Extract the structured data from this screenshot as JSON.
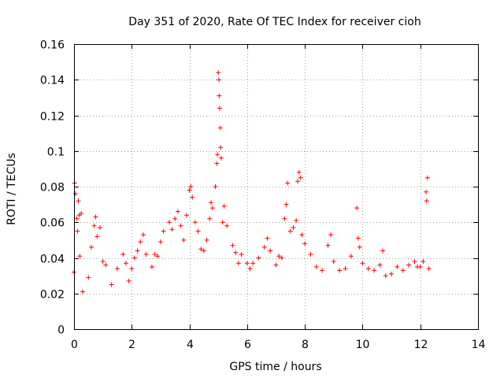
{
  "chart_data": {
    "type": "scatter",
    "title": "Day 351 of 2020, Rate Of TEC Index for receiver cioh",
    "xlabel": "GPS time / hours",
    "ylabel": "ROTI / TECUs",
    "xlim": [
      0,
      14
    ],
    "ylim": [
      0,
      0.16
    ],
    "x_ticks": [
      "0",
      "2",
      "4",
      "6",
      "8",
      "10",
      "12",
      "14"
    ],
    "y_ticks": [
      "0",
      "0.02",
      "0.04",
      "0.06",
      "0.08",
      "0.1",
      "0.12",
      "0.14",
      "0.16"
    ],
    "grid": true,
    "marker": "+",
    "color": "#ff0000",
    "series": [
      {
        "name": "ROTI",
        "points": [
          [
            0.0,
            0.032
          ],
          [
            0.02,
            0.082
          ],
          [
            0.05,
            0.076
          ],
          [
            0.1,
            0.062
          ],
          [
            0.12,
            0.055
          ],
          [
            0.15,
            0.072
          ],
          [
            0.18,
            0.064
          ],
          [
            0.2,
            0.041
          ],
          [
            0.25,
            0.065
          ],
          [
            0.3,
            0.021
          ],
          [
            0.5,
            0.029
          ],
          [
            0.6,
            0.046
          ],
          [
            0.7,
            0.058
          ],
          [
            0.75,
            0.063
          ],
          [
            0.8,
            0.052
          ],
          [
            0.9,
            0.057
          ],
          [
            1.0,
            0.038
          ],
          [
            1.1,
            0.036
          ],
          [
            1.3,
            0.025
          ],
          [
            1.5,
            0.034
          ],
          [
            1.7,
            0.042
          ],
          [
            1.8,
            0.037
          ],
          [
            1.9,
            0.027
          ],
          [
            2.0,
            0.034
          ],
          [
            2.1,
            0.04
          ],
          [
            2.2,
            0.044
          ],
          [
            2.3,
            0.049
          ],
          [
            2.4,
            0.053
          ],
          [
            2.5,
            0.042
          ],
          [
            2.7,
            0.035
          ],
          [
            2.8,
            0.042
          ],
          [
            2.9,
            0.041
          ],
          [
            3.0,
            0.049
          ],
          [
            3.1,
            0.055
          ],
          [
            3.3,
            0.06
          ],
          [
            3.4,
            0.056
          ],
          [
            3.5,
            0.062
          ],
          [
            3.6,
            0.066
          ],
          [
            3.7,
            0.058
          ],
          [
            3.8,
            0.05
          ],
          [
            3.9,
            0.064
          ],
          [
            4.0,
            0.078
          ],
          [
            4.05,
            0.08
          ],
          [
            4.1,
            0.074
          ],
          [
            4.2,
            0.06
          ],
          [
            4.3,
            0.055
          ],
          [
            4.4,
            0.045
          ],
          [
            4.5,
            0.044
          ],
          [
            4.6,
            0.05
          ],
          [
            4.7,
            0.062
          ],
          [
            4.75,
            0.071
          ],
          [
            4.8,
            0.068
          ],
          [
            4.9,
            0.08
          ],
          [
            4.95,
            0.093
          ],
          [
            4.97,
            0.098
          ],
          [
            5.0,
            0.144
          ],
          [
            5.02,
            0.14
          ],
          [
            5.03,
            0.131
          ],
          [
            5.05,
            0.124
          ],
          [
            5.07,
            0.113
          ],
          [
            5.08,
            0.102
          ],
          [
            5.1,
            0.096
          ],
          [
            5.15,
            0.06
          ],
          [
            5.2,
            0.069
          ],
          [
            5.3,
            0.058
          ],
          [
            5.5,
            0.047
          ],
          [
            5.6,
            0.043
          ],
          [
            5.7,
            0.037
          ],
          [
            5.8,
            0.042
          ],
          [
            6.0,
            0.037
          ],
          [
            6.1,
            0.034
          ],
          [
            6.2,
            0.037
          ],
          [
            6.4,
            0.04
          ],
          [
            6.6,
            0.046
          ],
          [
            6.7,
            0.051
          ],
          [
            6.8,
            0.044
          ],
          [
            7.0,
            0.036
          ],
          [
            7.1,
            0.041
          ],
          [
            7.2,
            0.04
          ],
          [
            7.3,
            0.062
          ],
          [
            7.35,
            0.07
          ],
          [
            7.4,
            0.082
          ],
          [
            7.5,
            0.055
          ],
          [
            7.6,
            0.057
          ],
          [
            7.7,
            0.061
          ],
          [
            7.75,
            0.083
          ],
          [
            7.8,
            0.088
          ],
          [
            7.85,
            0.085
          ],
          [
            7.9,
            0.053
          ],
          [
            8.0,
            0.048
          ],
          [
            8.2,
            0.042
          ],
          [
            8.4,
            0.035
          ],
          [
            8.6,
            0.033
          ],
          [
            8.8,
            0.047
          ],
          [
            8.9,
            0.053
          ],
          [
            9.0,
            0.038
          ],
          [
            9.2,
            0.033
          ],
          [
            9.4,
            0.034
          ],
          [
            9.6,
            0.041
          ],
          [
            9.8,
            0.068
          ],
          [
            9.85,
            0.051
          ],
          [
            9.9,
            0.046
          ],
          [
            10.0,
            0.037
          ],
          [
            10.2,
            0.034
          ],
          [
            10.4,
            0.033
          ],
          [
            10.6,
            0.036
          ],
          [
            10.7,
            0.044
          ],
          [
            10.8,
            0.03
          ],
          [
            11.0,
            0.031
          ],
          [
            11.2,
            0.035
          ],
          [
            11.4,
            0.033
          ],
          [
            11.6,
            0.036
          ],
          [
            11.8,
            0.038
          ],
          [
            11.9,
            0.035
          ],
          [
            12.0,
            0.035
          ],
          [
            12.1,
            0.038
          ],
          [
            12.2,
            0.077
          ],
          [
            12.22,
            0.072
          ],
          [
            12.25,
            0.085
          ],
          [
            12.3,
            0.034
          ]
        ]
      }
    ]
  }
}
